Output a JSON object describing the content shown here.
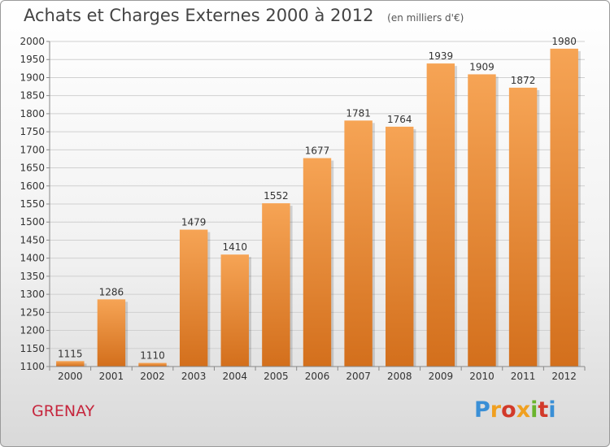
{
  "header": {
    "title": "Achats et Charges Externes 2000 à 2012",
    "unit": "(en milliers d'€)"
  },
  "footer": {
    "city": "GRENAY",
    "logo_text": "Proxiti",
    "logo_colors": [
      "#3a8fd6",
      "#f0a020",
      "#d23a2a",
      "#f0a020",
      "#6ab42d",
      "#d23a2a",
      "#3a8fd6"
    ]
  },
  "colors": {
    "bar_light": "#f6a455",
    "bar_dark": "#d36f1c",
    "grid": "#d0d0d0"
  },
  "chart_data": {
    "type": "bar",
    "title": "Achats et Charges Externes 2000 à 2012",
    "subtitle": "(en milliers d'€)",
    "categories": [
      "2000",
      "2001",
      "2002",
      "2003",
      "2004",
      "2005",
      "2006",
      "2007",
      "2008",
      "2009",
      "2010",
      "2011",
      "2012"
    ],
    "values": [
      1115,
      1286,
      1110,
      1479,
      1410,
      1552,
      1677,
      1781,
      1764,
      1939,
      1909,
      1872,
      1980
    ],
    "ylim": [
      1100,
      2000
    ],
    "yticks": [
      1100,
      1150,
      1200,
      1250,
      1300,
      1350,
      1400,
      1450,
      1500,
      1550,
      1600,
      1650,
      1700,
      1750,
      1800,
      1850,
      1900,
      1950,
      2000
    ],
    "grid": true,
    "legend": "none"
  }
}
